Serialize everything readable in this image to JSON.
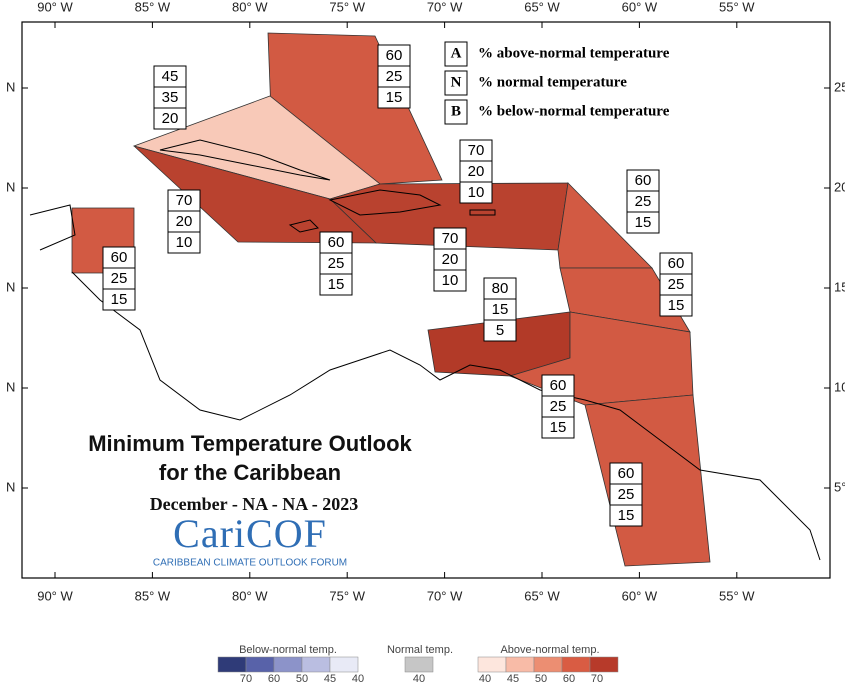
{
  "map": {
    "lon_labels": [
      "90° W",
      "85° W",
      "80° W",
      "75° W",
      "70° W",
      "65° W",
      "60° W",
      "55° W"
    ],
    "lat_labels_left": [
      "N",
      "N",
      "N",
      "N",
      "N"
    ],
    "lat_labels_right": [
      "25°",
      "20°",
      "15°",
      "10°",
      "5°"
    ],
    "key": [
      {
        "letter": "A",
        "text": "% above-normal temperature"
      },
      {
        "letter": "N",
        "text": "% normal temperature"
      },
      {
        "letter": "B",
        "text": "% below-normal temperature"
      }
    ],
    "regions": [
      {
        "above": "60",
        "normal": "25",
        "below": "15",
        "color": "#d25a43"
      },
      {
        "above": "45",
        "normal": "35",
        "below": "20",
        "color": "#f8c9b8"
      },
      {
        "above": "70",
        "normal": "20",
        "below": "10",
        "color": "#b9422f"
      },
      {
        "above": "70",
        "normal": "20",
        "below": "10",
        "color": "#b9422f"
      },
      {
        "above": "60",
        "normal": "25",
        "below": "15",
        "color": "#d25a43"
      },
      {
        "above": "70",
        "normal": "20",
        "below": "10",
        "color": "#b9422f"
      },
      {
        "above": "60",
        "normal": "25",
        "below": "15",
        "color": "#d25a43"
      },
      {
        "above": "60",
        "normal": "25",
        "below": "15",
        "color": "#d25a43"
      },
      {
        "above": "60",
        "normal": "25",
        "below": "15",
        "color": "#d25a43"
      },
      {
        "above": "80",
        "normal": "15",
        "below": "5",
        "color": "#b23a28"
      },
      {
        "above": "60",
        "normal": "25",
        "below": "15",
        "color": "#d25a43"
      },
      {
        "above": "60",
        "normal": "25",
        "below": "15",
        "color": "#d25a43"
      }
    ],
    "title_line1": "Minimum Temperature Outlook",
    "title_line2": "for the Caribbean",
    "period": "December - NA - NA - 2023",
    "logo": "CariCOF",
    "logo_subtitle": "CARIBBEAN CLIMATE OUTLOOK FORUM"
  },
  "colorbar": {
    "below": {
      "title": "Below-normal temp.",
      "labels": [
        "70",
        "60",
        "50",
        "45",
        "40"
      ],
      "colors": [
        "#2f3b78",
        "#5862a9",
        "#8c93c9",
        "#babee1",
        "#e8eaf6"
      ]
    },
    "normal": {
      "title": "Normal temp.",
      "labels": [
        "40"
      ],
      "colors": [
        "#c6c6c6"
      ]
    },
    "above": {
      "title": "Above-normal temp.",
      "labels": [
        "40",
        "45",
        "50",
        "60",
        "70"
      ],
      "colors": [
        "#fde6dd",
        "#f8bba7",
        "#ec8e72",
        "#d95c43",
        "#b73a2a"
      ]
    }
  }
}
